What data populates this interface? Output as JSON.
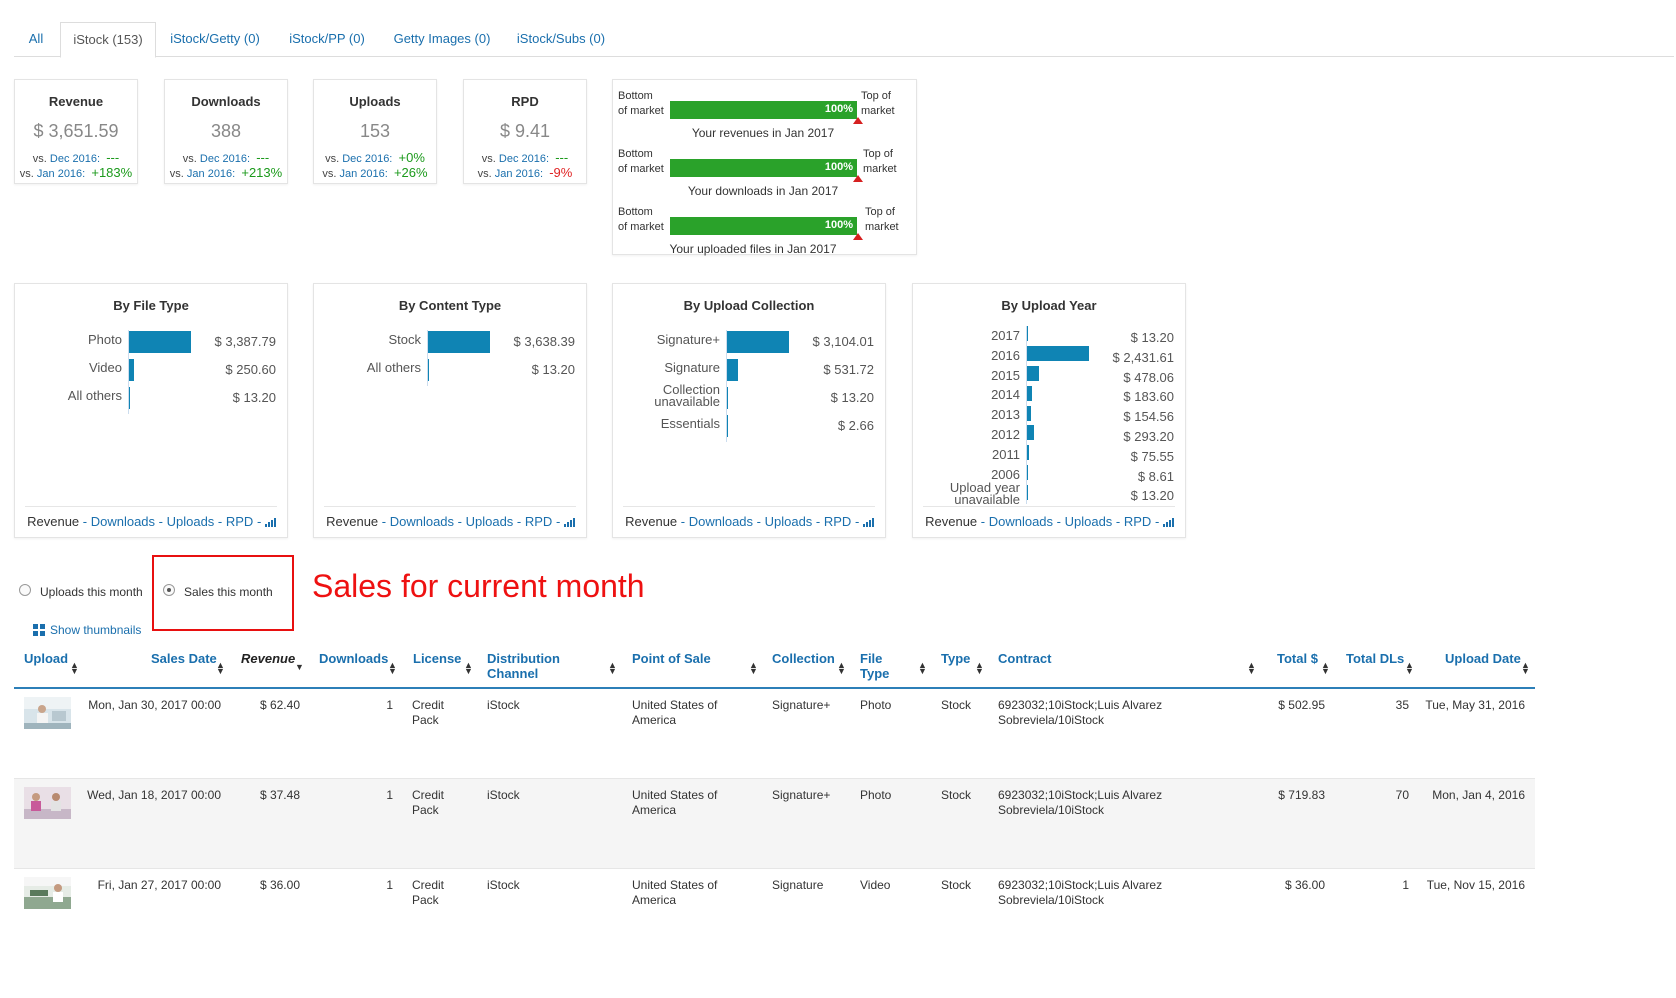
{
  "tabs": [
    "All",
    "iStock (153)",
    "iStock/Getty (0)",
    "iStock/PP (0)",
    "Getty Images (0)",
    "iStock/Subs (0)"
  ],
  "kpis": [
    {
      "title": "Revenue",
      "value": "$ 3,651.59",
      "vs1_prefix": "vs.",
      "vs1_period": "Dec 2016:",
      "vs1_delta": "---",
      "vs2_prefix": "vs.",
      "vs2_period": "Jan 2016:",
      "vs2_delta": "+183%"
    },
    {
      "title": "Downloads",
      "value": "388",
      "vs1_prefix": "vs.",
      "vs1_period": "Dec 2016:",
      "vs1_delta": "---",
      "vs2_prefix": "vs.",
      "vs2_period": "Jan 2016:",
      "vs2_delta": "+213%"
    },
    {
      "title": "Uploads",
      "value": "153",
      "vs1_prefix": "vs.",
      "vs1_period": "Dec 2016:",
      "vs1_delta": "+0%",
      "vs2_prefix": "vs.",
      "vs2_period": "Jan 2016:",
      "vs2_delta": "+26%"
    },
    {
      "title": "RPD",
      "value": "$ 9.41",
      "vs1_prefix": "vs.",
      "vs1_period": "Dec 2016:",
      "vs1_delta": "---",
      "vs2_prefix": "vs.",
      "vs2_period": "Jan 2016:",
      "vs2_delta": "-9%"
    }
  ],
  "market": {
    "bottom_label_1": "Bottom",
    "bottom_label_2": "of market",
    "top_label_1": "Top of",
    "top_label_2": "market",
    "rows": [
      {
        "percent_label": "100%",
        "level": 1.0,
        "caption": "Your revenues in Jan 2017"
      },
      {
        "percent_label": "100%",
        "level": 1.0,
        "caption": "Your downloads in Jan 2017"
      },
      {
        "percent_label": "100%",
        "level": 1.0,
        "caption": "Your uploaded files in Jan 2017"
      }
    ]
  },
  "breakdowns": [
    {
      "title": "By File Type",
      "rows": [
        {
          "label": "Photo",
          "value": "$ 3,387.79",
          "amount": 3387.79
        },
        {
          "label": "Video",
          "value": "$ 250.60",
          "amount": 250.6
        },
        {
          "label": "All others",
          "value": "$ 13.20",
          "amount": 13.2
        }
      ]
    },
    {
      "title": "By Content Type",
      "rows": [
        {
          "label": "Stock",
          "value": "$ 3,638.39",
          "amount": 3638.39
        },
        {
          "label": "All others",
          "value": "$ 13.20",
          "amount": 13.2
        }
      ]
    },
    {
      "title": "By Upload Collection",
      "rows": [
        {
          "label": "Signature+",
          "value": "$ 3,104.01",
          "amount": 3104.01
        },
        {
          "label": "Signature",
          "value": "$ 531.72",
          "amount": 531.72
        },
        {
          "label": "Collection unavailable",
          "value": "$ 13.20",
          "amount": 13.2
        },
        {
          "label": "Essentials",
          "value": "$ 2.66",
          "amount": 2.66
        }
      ]
    },
    {
      "title": "By Upload Year",
      "rows": [
        {
          "label": "2017",
          "value": "$ 13.20",
          "amount": 13.2
        },
        {
          "label": "2016",
          "value": "$ 2,431.61",
          "amount": 2431.61
        },
        {
          "label": "2015",
          "value": "$ 478.06",
          "amount": 478.06
        },
        {
          "label": "2014",
          "value": "$ 183.60",
          "amount": 183.6
        },
        {
          "label": "2013",
          "value": "$ 154.56",
          "amount": 154.56
        },
        {
          "label": "2012",
          "value": "$ 293.20",
          "amount": 293.2
        },
        {
          "label": "2011",
          "value": "$ 75.55",
          "amount": 75.55
        },
        {
          "label": "2006",
          "value": "$ 8.61",
          "amount": 8.61
        },
        {
          "label": "Upload year unavailable",
          "value": "$ 13.20",
          "amount": 13.2
        }
      ]
    }
  ],
  "footer_links": {
    "revenue": "Revenue",
    "sep": " - ",
    "downloads": "Downloads",
    "uploads": "Uploads",
    "rpd": "RPD"
  },
  "radios": {
    "uploads": "Uploads this month",
    "sales": "Sales this month",
    "selected": "sales"
  },
  "annotation": "Sales for current month",
  "show_thumbnails": "Show thumbnails",
  "table": {
    "headers": [
      "Upload",
      "Sales Date",
      "Revenue",
      "Downloads",
      "License",
      "Distribution Channel",
      "Point of Sale",
      "Collection",
      "File Type",
      "Type",
      "Contract",
      "Total $",
      "Total DLs",
      "Upload Date"
    ],
    "rows": [
      {
        "sales_date": "Mon, Jan 30, 2017 00:00",
        "revenue": "$ 62.40",
        "downloads": "1",
        "license": "Credit Pack",
        "channel": "iStock",
        "pos": "United States of America",
        "collection": "Signature+",
        "file_type": "Photo",
        "type": "Stock",
        "contract": "6923032;10iStock;Luis Alvarez Sobreviela/10iStock",
        "total": "$ 502.95",
        "total_dls": "35",
        "upload_date": "Tue, May 31, 2016"
      },
      {
        "sales_date": "Wed, Jan 18, 2017 00:00",
        "revenue": "$ 37.48",
        "downloads": "1",
        "license": "Credit Pack",
        "channel": "iStock",
        "pos": "United States of America",
        "collection": "Signature+",
        "file_type": "Photo",
        "type": "Stock",
        "contract": "6923032;10iStock;Luis Alvarez Sobreviela/10iStock",
        "total": "$ 719.83",
        "total_dls": "70",
        "upload_date": "Mon, Jan 4, 2016"
      },
      {
        "sales_date": "Fri, Jan 27, 2017 00:00",
        "revenue": "$ 36.00",
        "downloads": "1",
        "license": "Credit Pack",
        "channel": "iStock",
        "pos": "United States of America",
        "collection": "Signature",
        "file_type": "Video",
        "type": "Stock",
        "contract": "6923032;10iStock;Luis Alvarez Sobreviela/10iStock",
        "total": "$ 36.00",
        "total_dls": "1",
        "upload_date": "Tue, Nov 15, 2016"
      }
    ]
  }
}
